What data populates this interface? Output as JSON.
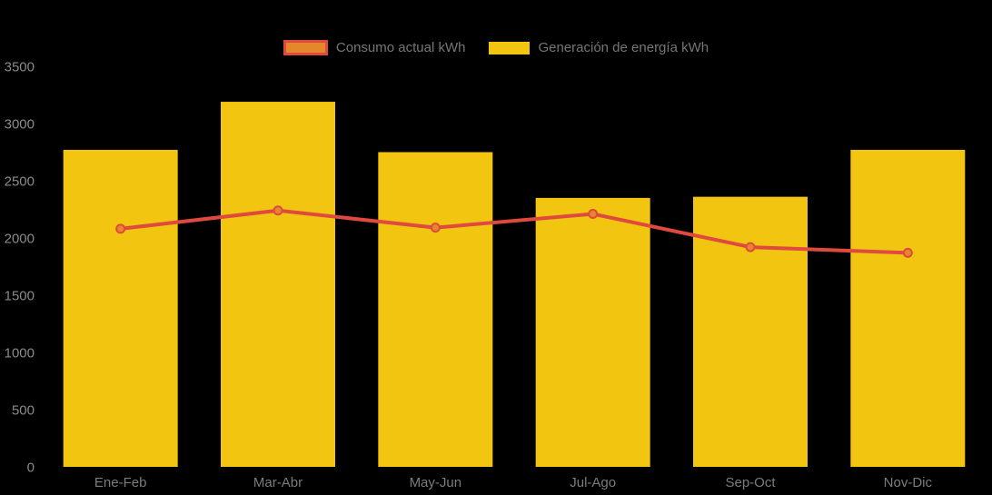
{
  "chart_data": {
    "type": "bar",
    "combo": "bar-with-line-overlay",
    "title": "",
    "xlabel": "",
    "ylabel": "",
    "categories": [
      "Ene-Feb",
      "Mar-Abr",
      "May-Jun",
      "Jul-Ago",
      "Sep-Oct",
      "Nov-Dic"
    ],
    "series": [
      {
        "name": "Consumo actual kWh",
        "type": "line",
        "values": [
          2080,
          2240,
          2090,
          2210,
          1920,
          1870
        ],
        "line_color": "#e04a3e",
        "marker_fill": "#e5872b",
        "marker_stroke": "#e04a3e"
      },
      {
        "name": "Generación de energía kWh",
        "type": "bar",
        "values": [
          2770,
          3190,
          2750,
          2350,
          2360,
          2770
        ],
        "bar_color": "#f2c511"
      }
    ],
    "ylim": [
      0,
      3500
    ],
    "y_ticks": [
      0,
      500,
      1000,
      1500,
      2000,
      2500,
      3000,
      3500
    ],
    "grid": false,
    "legend_position": "top-center",
    "background_color": "#000000",
    "y_tick_label_color": "#8a8a8a",
    "x_tick_label_color": "#7c7c7c"
  }
}
